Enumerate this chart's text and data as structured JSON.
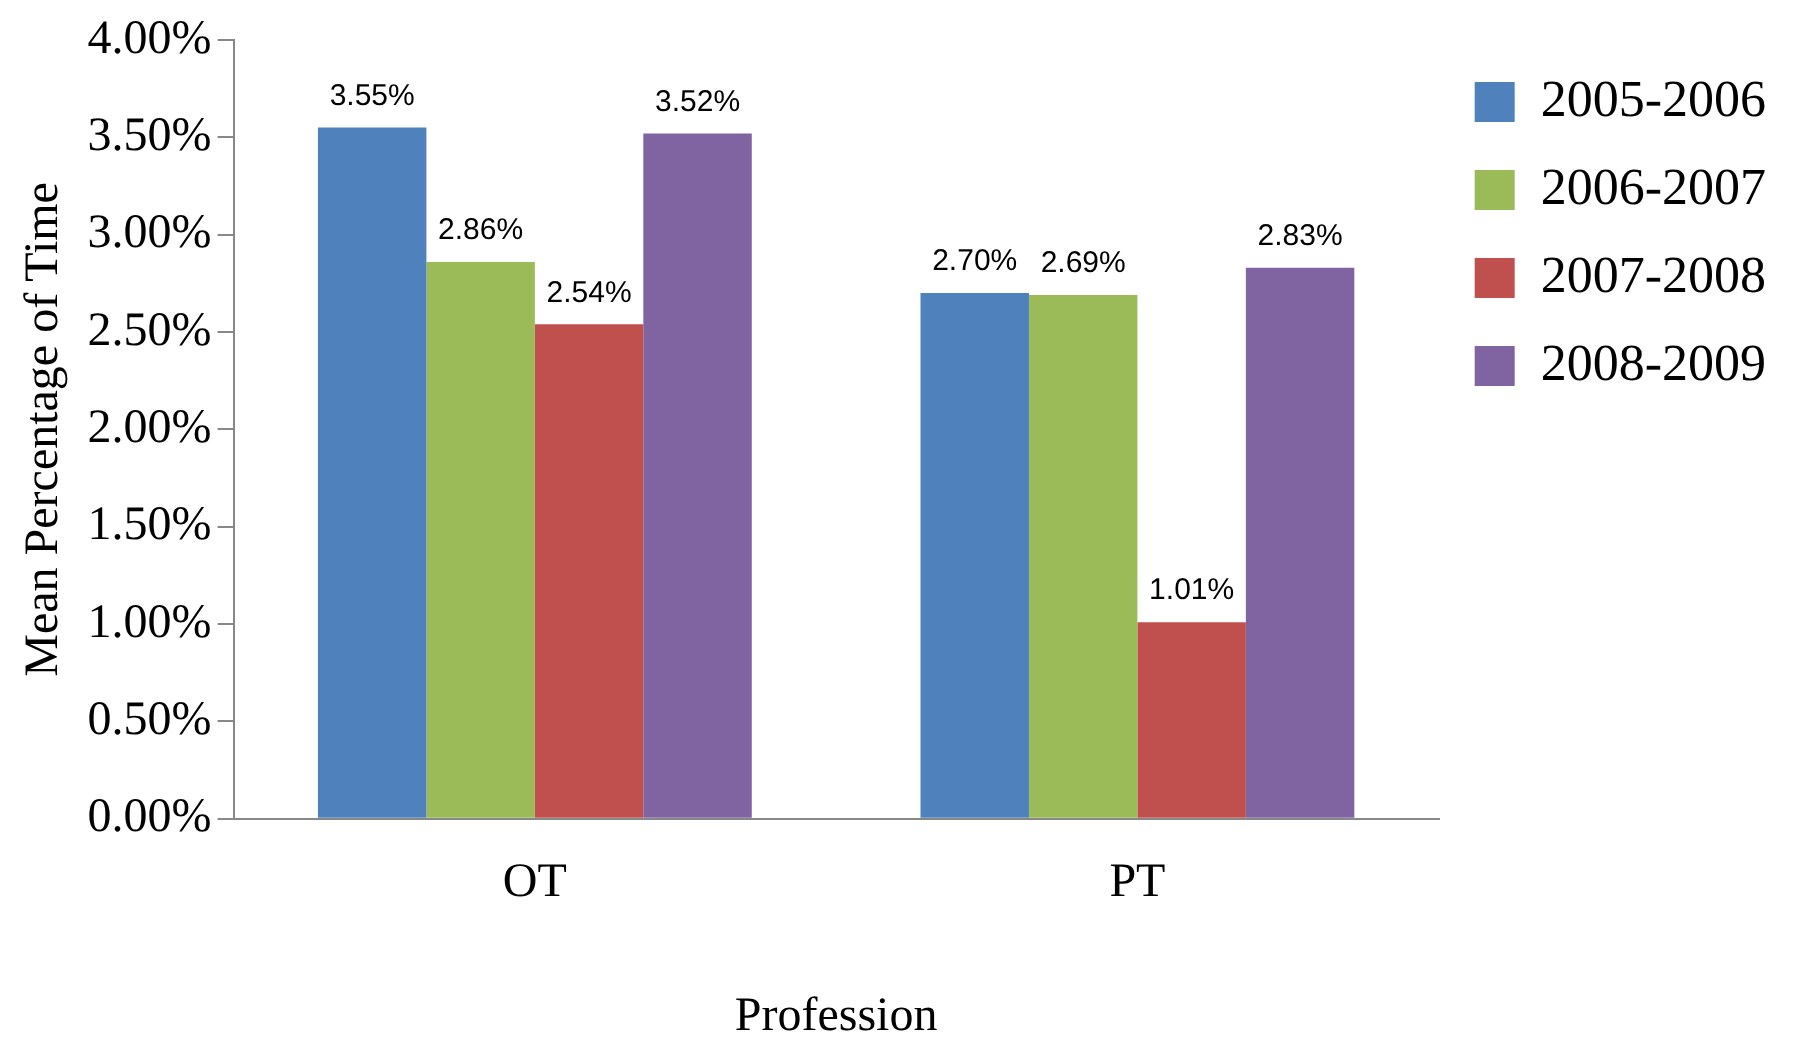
{
  "chart_data": {
    "type": "bar",
    "xlabel": "Profession",
    "ylabel": "Mean Percentage of Time",
    "categories": [
      "OT",
      "PT"
    ],
    "series": [
      {
        "name": "2005-2006",
        "color": "#4f81bd",
        "values": [
          3.55,
          2.7
        ],
        "value_labels": [
          "3.55%",
          "2.70%"
        ]
      },
      {
        "name": "2006-2007",
        "color": "#9bbb59",
        "values": [
          2.86,
          2.69
        ],
        "value_labels": [
          "2.86%",
          "2.69%"
        ]
      },
      {
        "name": "2007-2008",
        "color": "#c0504d",
        "values": [
          2.54,
          1.01
        ],
        "value_labels": [
          "2.54%",
          "1.01%"
        ]
      },
      {
        "name": "2008-2009",
        "color": "#8064a2",
        "values": [
          3.52,
          2.83
        ],
        "value_labels": [
          "3.52%",
          "2.83%"
        ]
      }
    ],
    "ylim": [
      0,
      4
    ],
    "yticks": [
      {
        "value": 0,
        "label": "0.00%"
      },
      {
        "value": 0.5,
        "label": "0.50%"
      },
      {
        "value": 1,
        "label": "1.00%"
      },
      {
        "value": 1.5,
        "label": "1.50%"
      },
      {
        "value": 2,
        "label": "2.00%"
      },
      {
        "value": 2.5,
        "label": "2.50%"
      },
      {
        "value": 3,
        "label": "3.00%"
      },
      {
        "value": 3.5,
        "label": "3.50%"
      },
      {
        "value": 4,
        "label": "4.00%"
      }
    ],
    "grid": false,
    "legend": "right"
  }
}
